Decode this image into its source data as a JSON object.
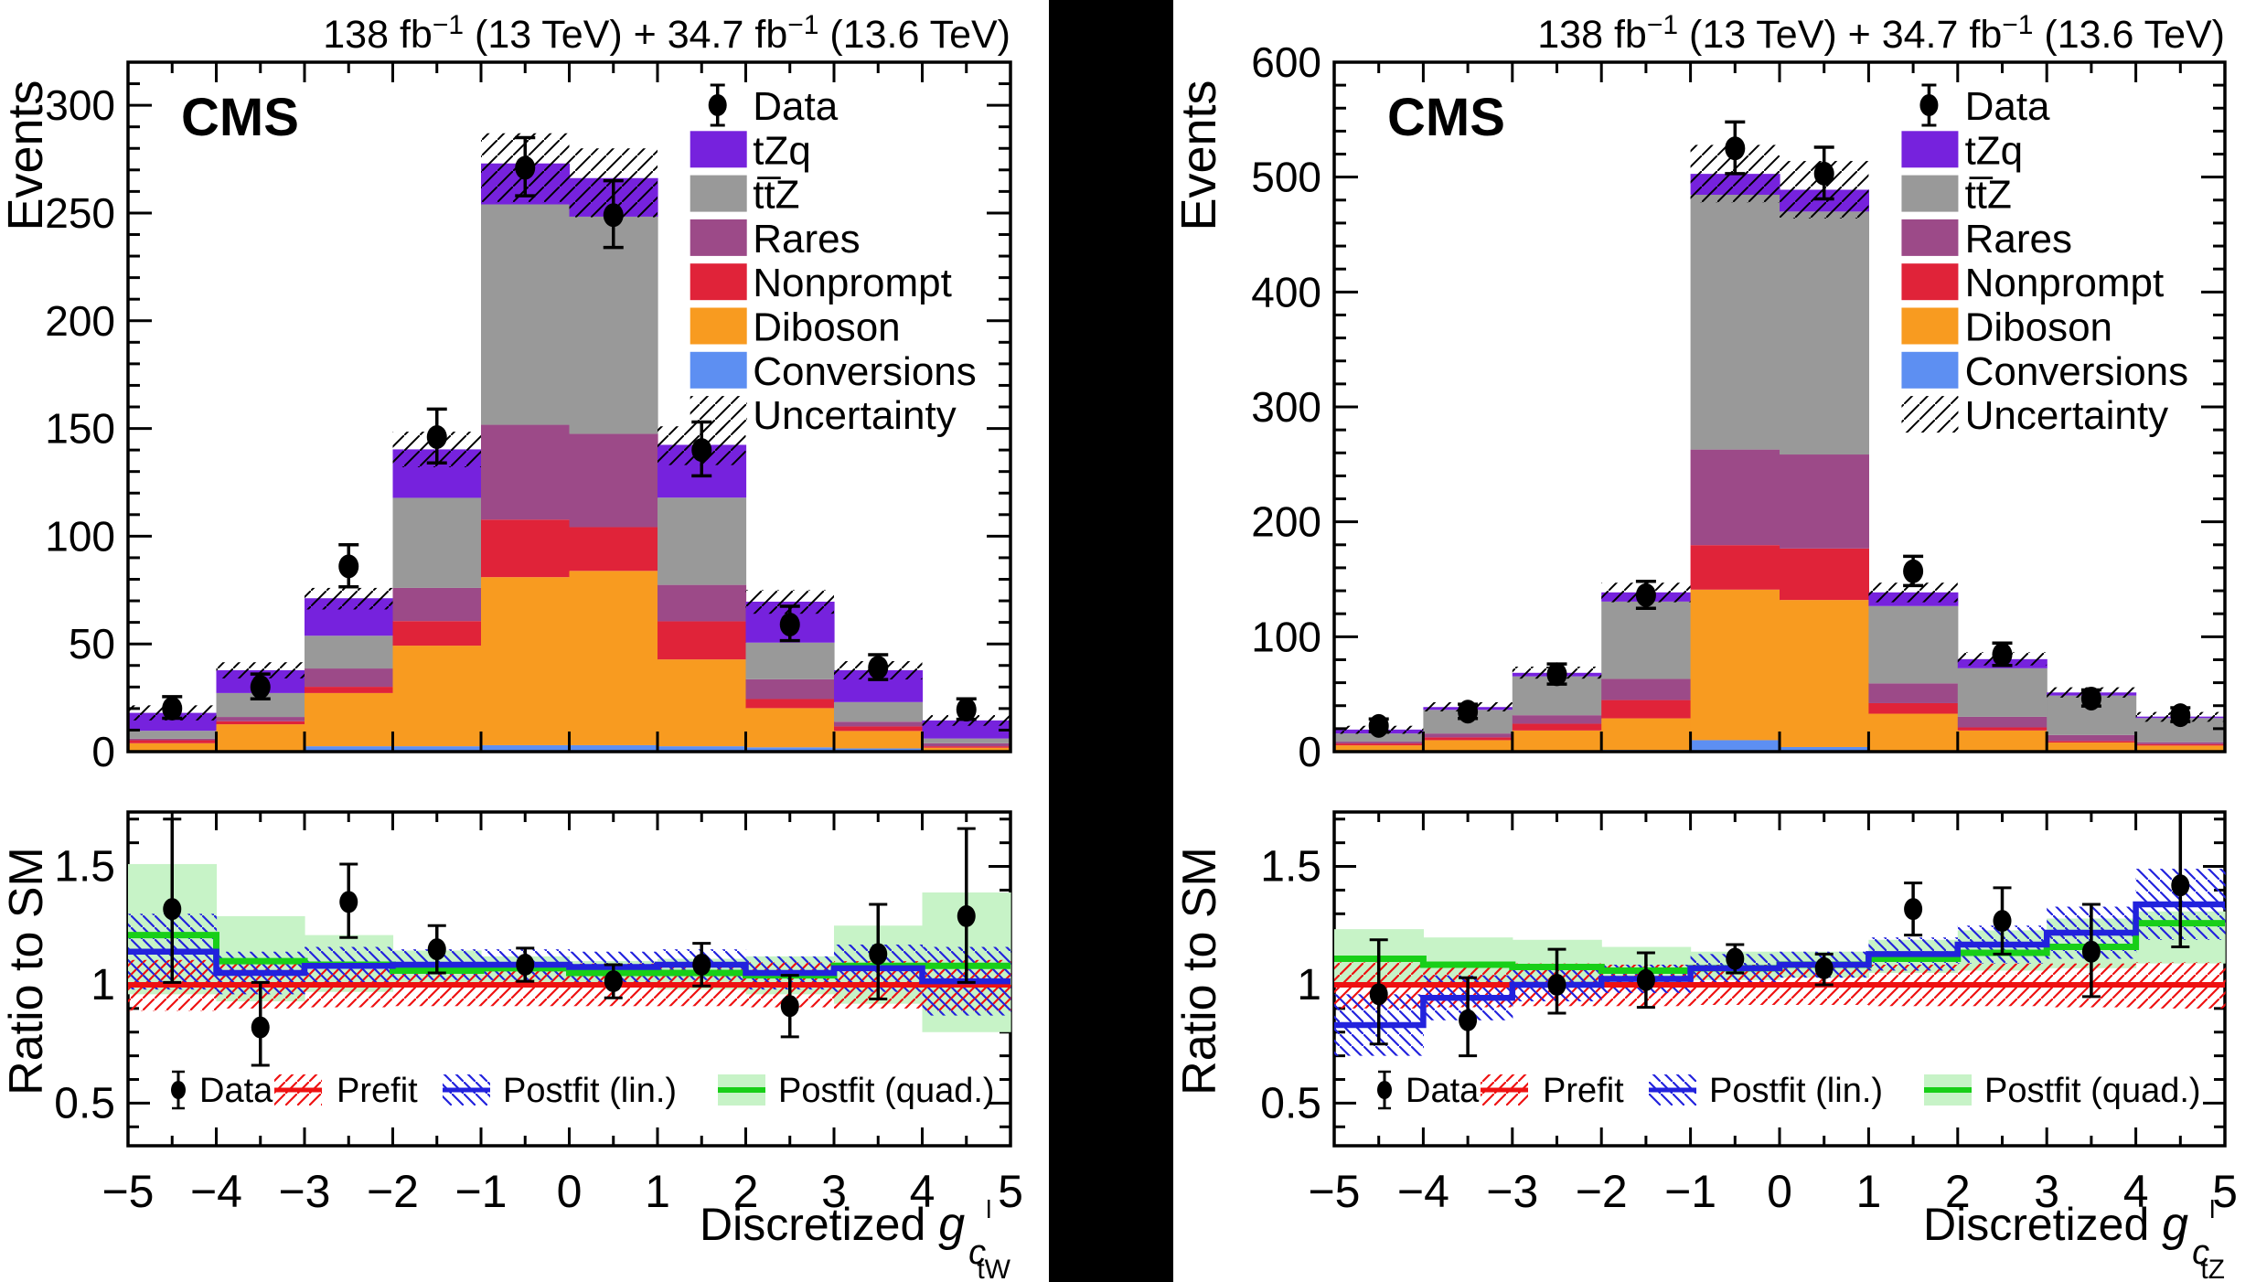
{
  "shared": {
    "title_parts": [
      {
        "t": "138 fb"
      },
      {
        "t": "−1",
        "sup": true
      },
      {
        "t": " (13 TeV) + 34.7 fb"
      },
      {
        "t": "−1",
        "sup": true
      },
      {
        "t": " (13.6 TeV)"
      }
    ],
    "cms_label": "CMS",
    "ylabel_main": "Events",
    "ylabel_ratio": "Ratio to SM",
    "legend": [
      {
        "label": "Data",
        "type": "data"
      },
      {
        "label": "tZq",
        "type": "fill",
        "color_key": "tzq"
      },
      {
        "label": "tt̅Z",
        "type": "fill",
        "color_key": "ttz"
      },
      {
        "label": "Rares",
        "type": "fill",
        "color_key": "rares"
      },
      {
        "label": "Nonprompt",
        "type": "fill",
        "color_key": "nonprompt"
      },
      {
        "label": "Diboson",
        "type": "fill",
        "color_key": "diboson"
      },
      {
        "label": "Conversions",
        "type": "fill",
        "color_key": "conversions"
      },
      {
        "label": "Uncertainty",
        "type": "hatch"
      }
    ],
    "ratio_legend": [
      {
        "label": "Data",
        "type": "data"
      },
      {
        "label": "Prefit",
        "type": "prefit"
      },
      {
        "label": "Postfit (lin.)",
        "type": "postfit_lin"
      },
      {
        "label": "Postfit (quad.)",
        "type": "postfit_quad"
      }
    ],
    "colors": {
      "tzq": "#7622dd",
      "ttz": "#999999",
      "rares": "#9c4a88",
      "nonprompt": "#e02339",
      "diboson": "#f89b20",
      "conversions": "#5d8ff2",
      "data": "#000000",
      "prefit": "#ee1111",
      "postfit_lin": "#2222dd",
      "postfit_quad": "#18cf18",
      "quad_band": "#c7f3c7",
      "hatch": "#000000"
    },
    "x_tick_labels": [
      "−5",
      "−4",
      "−3",
      "−2",
      "−1",
      "0",
      "1",
      "2",
      "3",
      "4",
      "5"
    ]
  },
  "chart_data": [
    {
      "type": "bar",
      "title": "138 fb-1 (13 TeV) + 34.7 fb-1 (13.6 TeV)",
      "ylabel": "Events",
      "xlabel": {
        "base": "Discretized ",
        "main": "g",
        "sub": "c",
        "sup": "l",
        "subsub": "tW"
      },
      "x_edges": [
        -5,
        -4,
        -3,
        -2,
        -1,
        0,
        1,
        2,
        3,
        4,
        5
      ],
      "ylim": [
        0,
        320
      ],
      "yticks": [
        0,
        50,
        100,
        150,
        200,
        250,
        300
      ],
      "y_minor_step": 10,
      "series": [
        {
          "name": "Conversions",
          "color_key": "conversions",
          "values": [
            0.5,
            0.5,
            2.5,
            2.5,
            3.0,
            3.0,
            2.5,
            2.0,
            1.5,
            0.3
          ]
        },
        {
          "name": "Diboson",
          "color_key": "diboson",
          "values": [
            3.4,
            12.2,
            24.7,
            46.7,
            78.0,
            80.9,
            40.3,
            18.2,
            8.1,
            1.5
          ]
        },
        {
          "name": "Nonprompt",
          "color_key": "nonprompt",
          "values": [
            1.4,
            1.4,
            2.9,
            11.4,
            26.7,
            20.3,
            17.7,
            4.2,
            2.1,
            0.7
          ]
        },
        {
          "name": "Rares",
          "color_key": "rares",
          "values": [
            0.7,
            2.0,
            8.5,
            15.4,
            44.0,
            43.3,
            16.9,
            9.2,
            2.2,
            1.4
          ]
        },
        {
          "name": "ttZ",
          "color_key": "ttz",
          "values": [
            3.7,
            11.1,
            15.2,
            41.8,
            102.3,
            100.8,
            40.5,
            17.0,
            9.1,
            2.2
          ]
        },
        {
          "name": "tZq",
          "color_key": "tzq",
          "values": [
            8.3,
            10.6,
            17.4,
            22.5,
            19.0,
            17.9,
            24.5,
            19.0,
            14.8,
            8.4
          ]
        }
      ],
      "totals": [
        18.0,
        37.8,
        71.2,
        140.3,
        273.0,
        266.2,
        142.4,
        69.6,
        37.8,
        14.5
      ],
      "uncertainty": [
        [
          14.5,
          21.5
        ],
        [
          34,
          41.5
        ],
        [
          66,
          76
        ],
        [
          132,
          148.5
        ],
        [
          255,
          287
        ],
        [
          248,
          280
        ],
        [
          133,
          151
        ],
        [
          64,
          75
        ],
        [
          33.5,
          42
        ],
        [
          12,
          17
        ]
      ],
      "data": {
        "y": [
          20,
          30,
          86,
          146,
          271,
          249,
          140,
          59,
          39,
          19.5
        ],
        "err_up": [
          5.5,
          6,
          10,
          13,
          14,
          16,
          13,
          8.5,
          6,
          5
        ],
        "err_dn": [
          4.5,
          5.5,
          9.5,
          12,
          13,
          15,
          12,
          7.5,
          5.5,
          4.5
        ]
      },
      "ratio": {
        "ylim": [
          0.32,
          1.73
        ],
        "yticks": [
          0.5,
          1,
          1.5
        ],
        "ytick_labels": [
          "0.5",
          "1",
          "1.5"
        ],
        "y_minor_step": 0.1,
        "data": {
          "y": [
            1.32,
            0.82,
            1.35,
            1.15,
            1.085,
            1.015,
            1.085,
            0.91,
            1.13,
            1.29
          ],
          "err_up": [
            0.38,
            0.19,
            0.16,
            0.1,
            0.07,
            0.07,
            0.09,
            0.13,
            0.21,
            0.37
          ],
          "err_dn": [
            0.31,
            0.16,
            0.15,
            0.1,
            0.07,
            0.07,
            0.09,
            0.13,
            0.19,
            0.28
          ]
        },
        "prefit": {
          "y": 1.0,
          "band": [
            [
              0.89,
              1.105
            ],
            [
              0.9,
              1.1
            ],
            [
              0.905,
              1.095
            ],
            [
              0.91,
              1.09
            ],
            [
              0.91,
              1.09
            ],
            [
              0.91,
              1.09
            ],
            [
              0.91,
              1.09
            ],
            [
              0.905,
              1.095
            ],
            [
              0.9,
              1.1
            ],
            [
              0.89,
              1.105
            ]
          ]
        },
        "postfit_lin": {
          "y": [
            1.14,
            1.05,
            1.08,
            1.085,
            1.085,
            1.075,
            1.085,
            1.05,
            1.07,
            1.015
          ],
          "band": [
            [
              0.98,
              1.3
            ],
            [
              0.96,
              1.14
            ],
            [
              1.0,
              1.16
            ],
            [
              1.02,
              1.15
            ],
            [
              1.02,
              1.15
            ],
            [
              1.01,
              1.14
            ],
            [
              1.02,
              1.15
            ],
            [
              0.98,
              1.12
            ],
            [
              0.97,
              1.17
            ],
            [
              0.87,
              1.16
            ]
          ]
        },
        "postfit_quad": {
          "y": [
            1.21,
            1.1,
            1.085,
            1.06,
            1.07,
            1.05,
            1.05,
            1.04,
            1.08,
            1.08
          ],
          "band": [
            [
              0.96,
              1.51
            ],
            [
              0.93,
              1.29
            ],
            [
              0.97,
              1.21
            ],
            [
              1.0,
              1.145
            ],
            [
              1.01,
              1.12
            ],
            [
              0.99,
              1.1
            ],
            [
              0.98,
              1.11
            ],
            [
              0.96,
              1.12
            ],
            [
              0.92,
              1.25
            ],
            [
              0.8,
              1.39
            ]
          ]
        }
      }
    },
    {
      "type": "bar",
      "title": "138 fb-1 (13 TeV) + 34.7 fb-1 (13.6 TeV)",
      "ylabel": "Events",
      "xlabel": {
        "base": "Discretized ",
        "main": "g",
        "sub": "c",
        "sup": "l",
        "subsub": "tZ"
      },
      "x_edges": [
        -5,
        -4,
        -3,
        -2,
        -1,
        0,
        1,
        2,
        3,
        4,
        5
      ],
      "ylim": [
        0,
        600
      ],
      "yticks": [
        0,
        100,
        200,
        300,
        400,
        500,
        600
      ],
      "y_minor_step": 20,
      "series": [
        {
          "name": "Conversions",
          "color_key": "conversions",
          "values": [
            0.3,
            0.5,
            0.5,
            1.5,
            10.0,
            4.0,
            1.0,
            0.5,
            0.3,
            0.3
          ]
        },
        {
          "name": "Diboson",
          "color_key": "diboson",
          "values": [
            5.2,
            9.5,
            17.9,
            27.5,
            131.0,
            128.0,
            32.0,
            17.9,
            7.6,
            5.0
          ]
        },
        {
          "name": "Nonprompt",
          "color_key": "nonprompt",
          "values": [
            1.6,
            2.4,
            5.9,
            15.9,
            38.7,
            44.8,
            9.2,
            2.7,
            1.4,
            1.3
          ]
        },
        {
          "name": "Rares",
          "color_key": "rares",
          "values": [
            1.6,
            3.4,
            7.4,
            18.4,
            83.2,
            81.8,
            17.2,
            9.2,
            5.2,
            1.6
          ]
        },
        {
          "name": "ttZ",
          "color_key": "ttz",
          "values": [
            7.1,
            20.6,
            33.8,
            67.3,
            221.7,
            211.4,
            67.3,
            42.3,
            34.3,
            21.0
          ]
        },
        {
          "name": "tZq",
          "color_key": "tzq",
          "values": [
            3.4,
            2.4,
            3.1,
            8.0,
            18.2,
            19.0,
            11.9,
            7.9,
            2.7,
            1.3
          ]
        }
      ],
      "totals": [
        19.2,
        38.8,
        68.6,
        138.6,
        502.8,
        489.0,
        138.6,
        80.5,
        51.5,
        30.5
      ],
      "uncertainty": [
        [
          15.5,
          22.5
        ],
        [
          35,
          43
        ],
        [
          63.5,
          74
        ],
        [
          130,
          147
        ],
        [
          478,
          528
        ],
        [
          464,
          514
        ],
        [
          130,
          147
        ],
        [
          75,
          86.5
        ],
        [
          47,
          56
        ],
        [
          26,
          34.5
        ]
      ],
      "data": {
        "y": [
          22.4,
          34.8,
          67.3,
          136.2,
          525,
          503,
          157,
          84.5,
          46.2,
          31.7
        ],
        "err_up": [
          6,
          6.5,
          9,
          12,
          23,
          23,
          13,
          10,
          7.5,
          6.5
        ],
        "err_dn": [
          5,
          6,
          8.5,
          11.5,
          22,
          22,
          12.5,
          9.5,
          6.5,
          5.5
        ]
      },
      "ratio": {
        "ylim": [
          0.32,
          1.73
        ],
        "yticks": [
          0.5,
          1,
          1.5
        ],
        "ytick_labels": [
          "0.5",
          "1",
          "1.5"
        ],
        "y_minor_step": 0.1,
        "data": {
          "y": [
            0.96,
            0.85,
            1.0,
            1.02,
            1.11,
            1.07,
            1.32,
            1.27,
            1.14,
            1.42
          ],
          "err_up": [
            0.23,
            0.18,
            0.15,
            0.115,
            0.06,
            0.06,
            0.11,
            0.14,
            0.2,
            0.31
          ],
          "err_dn": [
            0.21,
            0.15,
            0.12,
            0.115,
            0.06,
            0.07,
            0.11,
            0.14,
            0.19,
            0.26
          ]
        },
        "prefit": {
          "y": 1.0,
          "band": [
            [
              0.9,
              1.095
            ],
            [
              0.905,
              1.09
            ],
            [
              0.91,
              1.09
            ],
            [
              0.91,
              1.085
            ],
            [
              0.915,
              1.085
            ],
            [
              0.915,
              1.085
            ],
            [
              0.91,
              1.085
            ],
            [
              0.91,
              1.09
            ],
            [
              0.905,
              1.09
            ],
            [
              0.9,
              1.095
            ]
          ]
        },
        "postfit_lin": {
          "y": [
            0.83,
            0.945,
            1.0,
            1.025,
            1.07,
            1.085,
            1.13,
            1.17,
            1.22,
            1.34
          ],
          "band": [
            [
              0.7,
              0.96
            ],
            [
              0.85,
              1.04
            ],
            [
              0.93,
              1.07
            ],
            [
              0.965,
              1.085
            ],
            [
              1.01,
              1.13
            ],
            [
              1.03,
              1.14
            ],
            [
              1.06,
              1.2
            ],
            [
              1.09,
              1.25
            ],
            [
              1.11,
              1.33
            ],
            [
              1.19,
              1.49
            ]
          ]
        },
        "postfit_quad": {
          "y": [
            1.11,
            1.085,
            1.075,
            1.06,
            1.07,
            1.085,
            1.11,
            1.135,
            1.16,
            1.26
          ],
          "band": [
            [
              0.99,
              1.235
            ],
            [
              0.99,
              1.2
            ],
            [
              0.99,
              1.19
            ],
            [
              1.0,
              1.16
            ],
            [
              1.02,
              1.14
            ],
            [
              1.03,
              1.14
            ],
            [
              1.05,
              1.19
            ],
            [
              1.06,
              1.23
            ],
            [
              1.07,
              1.28
            ],
            [
              1.09,
              1.31
            ]
          ]
        }
      }
    }
  ]
}
